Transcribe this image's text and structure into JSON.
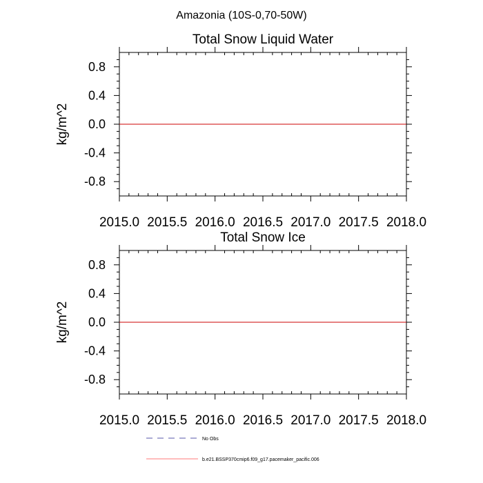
{
  "figure": {
    "main_title": "Amazonia (10S-0,70-50W)"
  },
  "chart_data": [
    {
      "type": "line",
      "title": "Total Snow Liquid Water",
      "xlabel": "",
      "ylabel": "kg/m^2",
      "xlim": [
        2015.0,
        2018.0
      ],
      "ylim": [
        -1.0,
        1.0
      ],
      "x_tick_labels": [
        "2015.0",
        "2015.5",
        "2016.0",
        "2016.5",
        "2017.0",
        "2017.5",
        "2018.0"
      ],
      "x_ticks": [
        2015.0,
        2015.5,
        2016.0,
        2016.5,
        2017.0,
        2017.5,
        2018.0
      ],
      "y_tick_labels": [
        "0.8",
        "0.4",
        "0.0",
        "-0.4",
        "-0.8"
      ],
      "y_ticks": [
        0.8,
        0.4,
        0.0,
        -0.4,
        -0.8
      ],
      "series": [
        {
          "name": "b.e21.BSSP370cmip6.f09_g17.pacemaker_pacific.006",
          "color": "#cc0000",
          "x": [
            2015.0,
            2018.0
          ],
          "y": [
            0.0,
            0.0
          ]
        }
      ]
    },
    {
      "type": "line",
      "title": "Total Snow Ice",
      "xlabel": "",
      "ylabel": "kg/m^2",
      "xlim": [
        2015.0,
        2018.0
      ],
      "ylim": [
        -1.0,
        1.0
      ],
      "x_tick_labels": [
        "2015.0",
        "2015.5",
        "2016.0",
        "2016.5",
        "2017.0",
        "2017.5",
        "2018.0"
      ],
      "x_ticks": [
        2015.0,
        2015.5,
        2016.0,
        2016.5,
        2017.0,
        2017.5,
        2018.0
      ],
      "y_tick_labels": [
        "0.8",
        "0.4",
        "0.0",
        "-0.4",
        "-0.8"
      ],
      "y_ticks": [
        0.8,
        0.4,
        0.0,
        -0.4,
        -0.8
      ],
      "series": [
        {
          "name": "b.e21.BSSP370cmip6.f09_g17.pacemaker_pacific.006",
          "color": "#cc0000",
          "x": [
            2015.0,
            2018.0
          ],
          "y": [
            0.0,
            0.0
          ]
        }
      ]
    }
  ],
  "legend": {
    "placement": "bottom-center",
    "items": [
      {
        "label": "No Obs",
        "style": "dashed",
        "color": "#5555aa"
      },
      {
        "label": "b.e21.BSSP370cmip6.f09_g17.pacemaker_pacific.006",
        "style": "solid",
        "color": "#ff7777"
      }
    ]
  }
}
